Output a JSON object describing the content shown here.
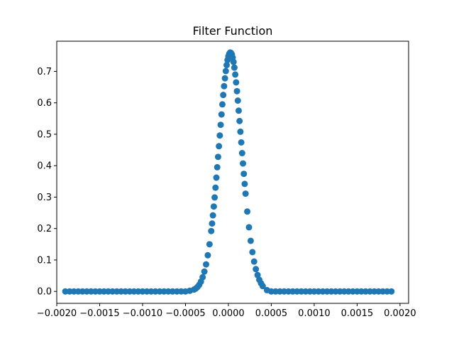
{
  "chart_data": {
    "type": "scatter",
    "title": "Filter Function",
    "xlabel": "",
    "ylabel": "",
    "xlim": [
      -0.002,
      0.0021
    ],
    "ylim": [
      -0.038,
      0.796
    ],
    "x_ticks": [
      -0.002,
      -0.0015,
      -0.001,
      -0.0005,
      0.0,
      0.0005,
      0.001,
      0.0015,
      0.002
    ],
    "x_tick_labels": [
      "−0.0020",
      "−0.0015",
      "−0.0010",
      "−0.0005",
      "0.0000",
      "0.0005",
      "0.0010",
      "0.0015",
      "0.0020"
    ],
    "y_ticks": [
      0.0,
      0.1,
      0.2,
      0.3,
      0.4,
      0.5,
      0.6,
      0.7
    ],
    "y_tick_labels": [
      "0.0",
      "0.1",
      "0.2",
      "0.3",
      "0.4",
      "0.5",
      "0.6",
      "0.7"
    ],
    "grid": false,
    "legend": "none",
    "marker_color": "#1f77b4",
    "series": [
      {
        "x": [
          -0.0019,
          -0.00185,
          -0.0018,
          -0.00175,
          -0.0017,
          -0.00165,
          -0.0016,
          -0.00155,
          -0.0015,
          -0.00145,
          -0.0014,
          -0.00135,
          -0.0013,
          -0.00125,
          -0.0012,
          -0.00115,
          -0.0011,
          -0.00105,
          -0.001,
          -0.00095,
          -0.0009,
          -0.00085,
          -0.0008,
          -0.00075,
          -0.0007,
          -0.00065,
          -0.0006,
          -0.00055,
          -0.0005,
          -0.00045,
          -0.0004,
          -0.00038,
          -0.00036,
          -0.00034,
          -0.00032,
          -0.0003,
          -0.00028,
          -0.00026,
          -0.00024,
          -0.00022,
          -0.0002,
          -0.00019,
          -0.00018,
          -0.00017,
          -0.00016,
          -0.00015,
          -0.00014,
          -0.00013,
          -0.00012,
          -0.00011,
          -0.0001,
          -9e-05,
          -8e-05,
          -7e-05,
          -6e-05,
          -5e-05,
          -4e-05,
          -3e-05,
          -2e-05,
          -1e-05,
          0.0,
          1e-05,
          2e-05,
          3e-05,
          4e-05,
          5e-05,
          6e-05,
          7e-05,
          8e-05,
          9e-05,
          0.0001,
          0.00011,
          0.00012,
          0.00013,
          0.00014,
          0.00015,
          0.00016,
          0.00017,
          0.00018,
          0.00019,
          0.0002,
          0.00022,
          0.00024,
          0.00026,
          0.00028,
          0.0003,
          0.00032,
          0.00034,
          0.00036,
          0.00038,
          0.0004,
          0.00045,
          0.0005,
          0.00055,
          0.0006,
          0.00065,
          0.0007,
          0.00075,
          0.0008,
          0.00085,
          0.0009,
          0.00095,
          0.001,
          0.00105,
          0.0011,
          0.00115,
          0.0012,
          0.00125,
          0.0013,
          0.00135,
          0.0014,
          0.00145,
          0.0015,
          0.00155,
          0.0016,
          0.00165,
          0.0017,
          0.00175,
          0.0018,
          0.00185,
          0.0019
        ],
        "y": [
          0.0,
          0.0,
          0.0,
          0.0,
          0.0,
          0.0,
          0.0,
          0.0,
          0.0,
          0.0,
          0.0,
          0.0,
          0.0,
          0.0,
          0.0,
          0.0,
          0.0,
          0.0,
          0.0,
          0.0,
          0.0,
          0.0,
          0.0,
          0.0,
          0.0,
          0.0,
          0.0,
          0.0,
          0.0,
          0.002,
          0.006,
          0.009,
          0.014,
          0.021,
          0.031,
          0.045,
          0.063,
          0.086,
          0.115,
          0.15,
          0.192,
          0.216,
          0.242,
          0.27,
          0.299,
          0.33,
          0.362,
          0.395,
          0.428,
          0.462,
          0.496,
          0.53,
          0.563,
          0.595,
          0.625,
          0.653,
          0.678,
          0.701,
          0.72,
          0.736,
          0.748,
          0.756,
          0.76,
          0.759,
          0.754,
          0.744,
          0.73,
          0.712,
          0.69,
          0.665,
          0.637,
          0.607,
          0.575,
          0.542,
          0.508,
          0.474,
          0.44,
          0.407,
          0.374,
          0.342,
          0.311,
          0.254,
          0.204,
          0.161,
          0.125,
          0.095,
          0.071,
          0.052,
          0.037,
          0.026,
          0.017,
          0.004,
          0.0,
          0.0,
          0.0,
          0.0,
          0.0,
          0.0,
          0.0,
          0.0,
          0.0,
          0.0,
          0.0,
          0.0,
          0.0,
          0.0,
          0.0,
          0.0,
          0.0,
          0.0,
          0.0,
          0.0,
          0.0,
          0.0,
          0.0,
          0.0,
          0.0,
          0.0,
          0.0,
          0.0,
          0.0
        ]
      }
    ]
  }
}
